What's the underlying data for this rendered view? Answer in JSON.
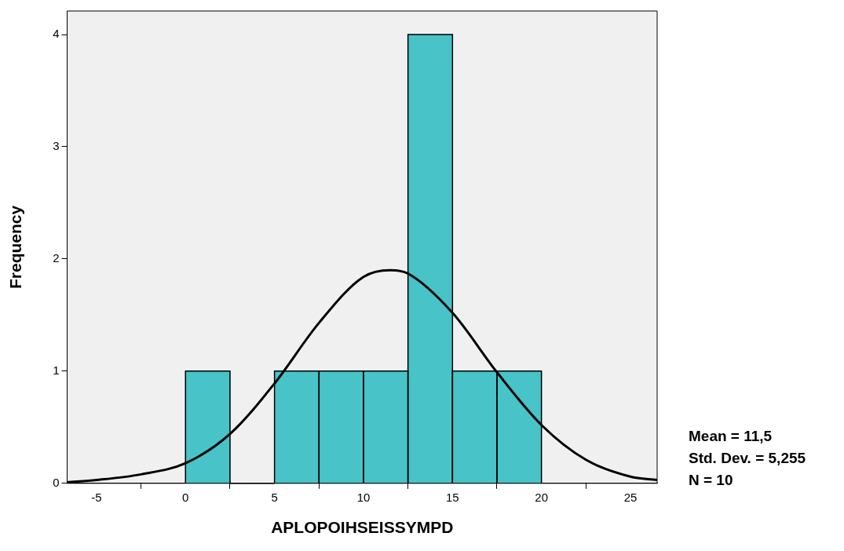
{
  "chart_data": {
    "type": "histogram",
    "xlabel": "APLOPOIHSEISSYMPD",
    "ylabel": "Frequency",
    "bins": [
      0,
      2.5,
      5,
      7.5,
      10,
      12.5,
      15,
      17.5,
      20
    ],
    "values": [
      1,
      0,
      1,
      1,
      1,
      4,
      1,
      1
    ],
    "color": "#48c3c7",
    "series": [
      {
        "type": "line",
        "color": "#000000",
        "x": [
          -6.65,
          -5,
          -2.5,
          0,
          2.5,
          5,
          7.5,
          10,
          11.5,
          12.5,
          15,
          17.5,
          20,
          22.5,
          25,
          26.5
        ],
        "values": [
          0.01,
          0.03,
          0.08,
          0.18,
          0.44,
          0.89,
          1.43,
          1.84,
          1.9,
          1.87,
          1.52,
          0.99,
          0.52,
          0.21,
          0.06,
          0.03
        ]
      }
    ],
    "xlim": [
      -6.65,
      26.5
    ],
    "xticks": [
      -5,
      0,
      5,
      10,
      15,
      20,
      25
    ],
    "ylim": [
      0,
      4.21
    ],
    "yticks": [
      0,
      1,
      2,
      3,
      4
    ],
    "grid": false,
    "legend": false,
    "marker": "none",
    "annotations": [
      "Mean = 11,5",
      "Std. Dev. = 5,255",
      "N = 10"
    ]
  }
}
